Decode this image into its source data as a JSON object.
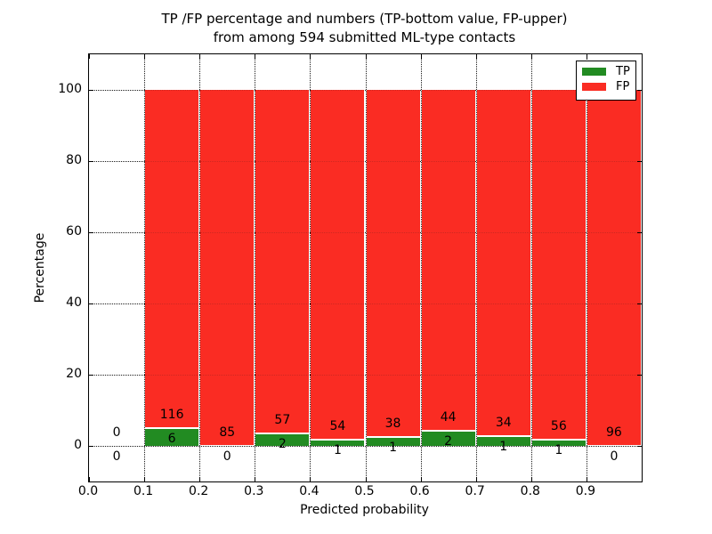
{
  "chart_data": {
    "type": "bar",
    "stacked": true,
    "normalized": "percent",
    "title_lines": [
      "TP /FP percentage and numbers (TP-bottom value, FP-upper)",
      "from among 594 submitted ML-type contacts"
    ],
    "total_contacts": 594,
    "xlabel": "Predicted probability",
    "ylabel": "Percentage",
    "xlim": [
      0.0,
      1.0
    ],
    "ylim": [
      -10,
      110
    ],
    "x_tick_labels": [
      "0.0",
      "0.1",
      "0.2",
      "0.3",
      "0.4",
      "0.5",
      "0.6",
      "0.7",
      "0.8",
      "0.9"
    ],
    "x_tick_values": [
      0.0,
      0.1,
      0.2,
      0.3,
      0.4,
      0.5,
      0.6,
      0.7,
      0.8,
      0.9
    ],
    "y_tick_values": [
      0,
      20,
      40,
      60,
      80,
      100
    ],
    "grid": "dotted",
    "legend_position": "upper right",
    "bin_edges": [
      0.0,
      0.1,
      0.2,
      0.3,
      0.4,
      0.5,
      0.6,
      0.7,
      0.8,
      0.9,
      1.0
    ],
    "series": [
      {
        "name": "TP",
        "color": "#228b22",
        "counts": [
          0,
          6,
          0,
          2,
          1,
          1,
          2,
          1,
          1,
          0
        ]
      },
      {
        "name": "FP",
        "color": "#fa2c23",
        "counts": [
          0,
          116,
          85,
          57,
          54,
          38,
          44,
          34,
          56,
          96
        ]
      }
    ]
  }
}
